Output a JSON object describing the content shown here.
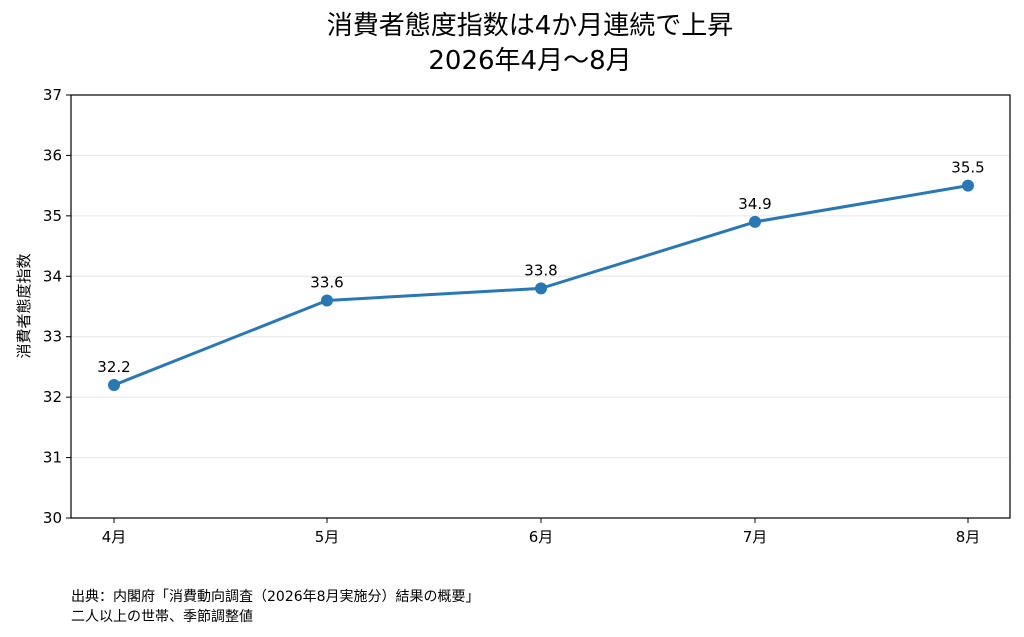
{
  "chart_data": {
    "type": "line",
    "title_line1": "消費者態度指数は4か月連続で上昇",
    "title_line2": "2026年4月〜8月",
    "xlabel": "",
    "ylabel": "消費者態度指数",
    "categories": [
      "4月",
      "5月",
      "6月",
      "7月",
      "8月"
    ],
    "series": [
      {
        "values": [
          32.2,
          33.6,
          33.8,
          34.9,
          35.5
        ],
        "color": "#2878b5"
      }
    ],
    "data_labels": [
      "32.2",
      "33.6",
      "33.8",
      "34.9",
      "35.5"
    ],
    "ylim": [
      30,
      37
    ],
    "yticks": [
      "30",
      "31",
      "32",
      "33",
      "34",
      "35",
      "36",
      "37"
    ],
    "grid": "horizontal",
    "marker": "circle"
  },
  "source": {
    "line1": "出典：内閣府「消費動向調査（2026年8月実施分）結果の概要」",
    "line2": "二人以上の世帯、季節調整値"
  }
}
